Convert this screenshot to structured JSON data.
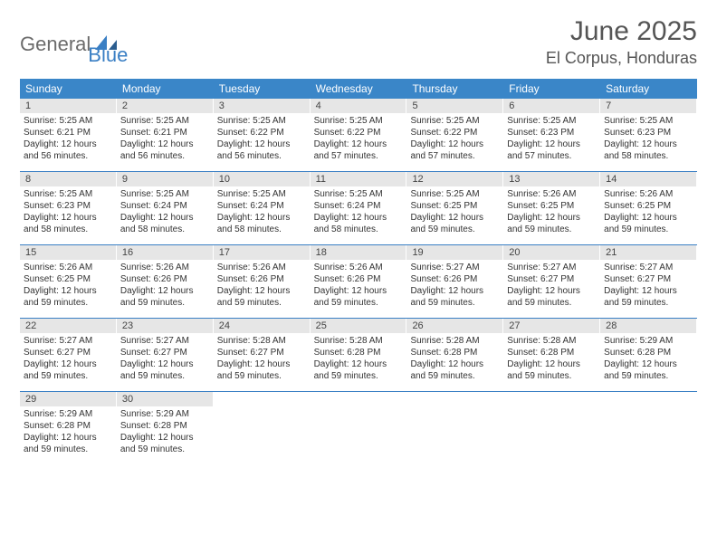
{
  "logo": {
    "part1": "General",
    "part2": "Blue"
  },
  "title": "June 2025",
  "location": "El Corpus, Honduras",
  "colors": {
    "header_bar": "#3a86c8",
    "accent": "#3a7fc4",
    "daynum_bg": "#e6e6e6",
    "text": "#333333",
    "title_text": "#555555"
  },
  "weekdays": [
    "Sunday",
    "Monday",
    "Tuesday",
    "Wednesday",
    "Thursday",
    "Friday",
    "Saturday"
  ],
  "weeks": [
    [
      {
        "n": "1",
        "sr": "Sunrise: 5:25 AM",
        "ss": "Sunset: 6:21 PM",
        "dl": "Daylight: 12 hours and 56 minutes."
      },
      {
        "n": "2",
        "sr": "Sunrise: 5:25 AM",
        "ss": "Sunset: 6:21 PM",
        "dl": "Daylight: 12 hours and 56 minutes."
      },
      {
        "n": "3",
        "sr": "Sunrise: 5:25 AM",
        "ss": "Sunset: 6:22 PM",
        "dl": "Daylight: 12 hours and 56 minutes."
      },
      {
        "n": "4",
        "sr": "Sunrise: 5:25 AM",
        "ss": "Sunset: 6:22 PM",
        "dl": "Daylight: 12 hours and 57 minutes."
      },
      {
        "n": "5",
        "sr": "Sunrise: 5:25 AM",
        "ss": "Sunset: 6:22 PM",
        "dl": "Daylight: 12 hours and 57 minutes."
      },
      {
        "n": "6",
        "sr": "Sunrise: 5:25 AM",
        "ss": "Sunset: 6:23 PM",
        "dl": "Daylight: 12 hours and 57 minutes."
      },
      {
        "n": "7",
        "sr": "Sunrise: 5:25 AM",
        "ss": "Sunset: 6:23 PM",
        "dl": "Daylight: 12 hours and 58 minutes."
      }
    ],
    [
      {
        "n": "8",
        "sr": "Sunrise: 5:25 AM",
        "ss": "Sunset: 6:23 PM",
        "dl": "Daylight: 12 hours and 58 minutes."
      },
      {
        "n": "9",
        "sr": "Sunrise: 5:25 AM",
        "ss": "Sunset: 6:24 PM",
        "dl": "Daylight: 12 hours and 58 minutes."
      },
      {
        "n": "10",
        "sr": "Sunrise: 5:25 AM",
        "ss": "Sunset: 6:24 PM",
        "dl": "Daylight: 12 hours and 58 minutes."
      },
      {
        "n": "11",
        "sr": "Sunrise: 5:25 AM",
        "ss": "Sunset: 6:24 PM",
        "dl": "Daylight: 12 hours and 58 minutes."
      },
      {
        "n": "12",
        "sr": "Sunrise: 5:25 AM",
        "ss": "Sunset: 6:25 PM",
        "dl": "Daylight: 12 hours and 59 minutes."
      },
      {
        "n": "13",
        "sr": "Sunrise: 5:26 AM",
        "ss": "Sunset: 6:25 PM",
        "dl": "Daylight: 12 hours and 59 minutes."
      },
      {
        "n": "14",
        "sr": "Sunrise: 5:26 AM",
        "ss": "Sunset: 6:25 PM",
        "dl": "Daylight: 12 hours and 59 minutes."
      }
    ],
    [
      {
        "n": "15",
        "sr": "Sunrise: 5:26 AM",
        "ss": "Sunset: 6:25 PM",
        "dl": "Daylight: 12 hours and 59 minutes."
      },
      {
        "n": "16",
        "sr": "Sunrise: 5:26 AM",
        "ss": "Sunset: 6:26 PM",
        "dl": "Daylight: 12 hours and 59 minutes."
      },
      {
        "n": "17",
        "sr": "Sunrise: 5:26 AM",
        "ss": "Sunset: 6:26 PM",
        "dl": "Daylight: 12 hours and 59 minutes."
      },
      {
        "n": "18",
        "sr": "Sunrise: 5:26 AM",
        "ss": "Sunset: 6:26 PM",
        "dl": "Daylight: 12 hours and 59 minutes."
      },
      {
        "n": "19",
        "sr": "Sunrise: 5:27 AM",
        "ss": "Sunset: 6:26 PM",
        "dl": "Daylight: 12 hours and 59 minutes."
      },
      {
        "n": "20",
        "sr": "Sunrise: 5:27 AM",
        "ss": "Sunset: 6:27 PM",
        "dl": "Daylight: 12 hours and 59 minutes."
      },
      {
        "n": "21",
        "sr": "Sunrise: 5:27 AM",
        "ss": "Sunset: 6:27 PM",
        "dl": "Daylight: 12 hours and 59 minutes."
      }
    ],
    [
      {
        "n": "22",
        "sr": "Sunrise: 5:27 AM",
        "ss": "Sunset: 6:27 PM",
        "dl": "Daylight: 12 hours and 59 minutes."
      },
      {
        "n": "23",
        "sr": "Sunrise: 5:27 AM",
        "ss": "Sunset: 6:27 PM",
        "dl": "Daylight: 12 hours and 59 minutes."
      },
      {
        "n": "24",
        "sr": "Sunrise: 5:28 AM",
        "ss": "Sunset: 6:27 PM",
        "dl": "Daylight: 12 hours and 59 minutes."
      },
      {
        "n": "25",
        "sr": "Sunrise: 5:28 AM",
        "ss": "Sunset: 6:28 PM",
        "dl": "Daylight: 12 hours and 59 minutes."
      },
      {
        "n": "26",
        "sr": "Sunrise: 5:28 AM",
        "ss": "Sunset: 6:28 PM",
        "dl": "Daylight: 12 hours and 59 minutes."
      },
      {
        "n": "27",
        "sr": "Sunrise: 5:28 AM",
        "ss": "Sunset: 6:28 PM",
        "dl": "Daylight: 12 hours and 59 minutes."
      },
      {
        "n": "28",
        "sr": "Sunrise: 5:29 AM",
        "ss": "Sunset: 6:28 PM",
        "dl": "Daylight: 12 hours and 59 minutes."
      }
    ],
    [
      {
        "n": "29",
        "sr": "Sunrise: 5:29 AM",
        "ss": "Sunset: 6:28 PM",
        "dl": "Daylight: 12 hours and 59 minutes."
      },
      {
        "n": "30",
        "sr": "Sunrise: 5:29 AM",
        "ss": "Sunset: 6:28 PM",
        "dl": "Daylight: 12 hours and 59 minutes."
      },
      null,
      null,
      null,
      null,
      null
    ]
  ]
}
